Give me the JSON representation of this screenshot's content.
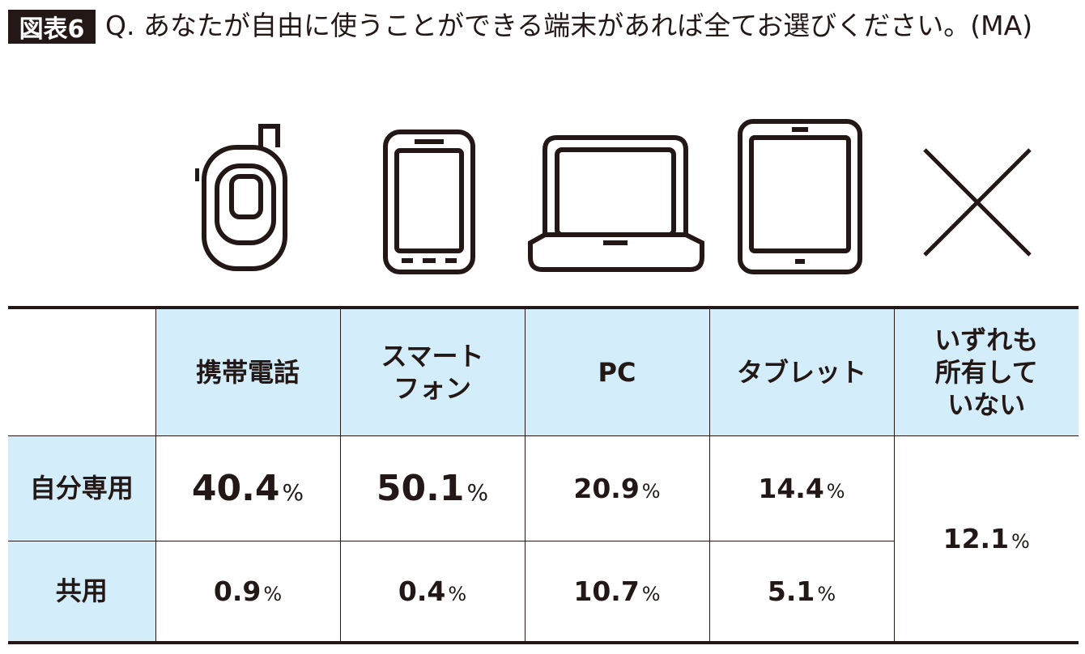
{
  "figure_label": "図表6",
  "question": "Q. あなたが自由に使うことができる端末があれば全てお選びください。(MA)",
  "icons": [
    "flip-phone-icon",
    "smartphone-icon",
    "laptop-icon",
    "tablet-icon",
    "cross-icon"
  ],
  "chart_data": {
    "type": "table",
    "columns": [
      "携帯電話",
      "スマートフォン",
      "PC",
      "タブレット",
      "いずれも所有していない"
    ],
    "rows": [
      {
        "label": "自分専用",
        "values": [
          "40.4",
          "50.1",
          "20.9",
          "14.4",
          "12.1"
        ]
      },
      {
        "label": "共用",
        "values": [
          "0.9",
          "0.4",
          "10.7",
          "5.1"
        ]
      }
    ],
    "unit": "%",
    "header_color": "#d4edfa"
  },
  "headers": {
    "col0": [
      "携帯電話"
    ],
    "col1": [
      "スマート",
      "フォン"
    ],
    "col2": [
      "PC"
    ],
    "col3": [
      "タブレット"
    ],
    "col4": [
      "いずれも",
      "所有して",
      "いない"
    ]
  }
}
